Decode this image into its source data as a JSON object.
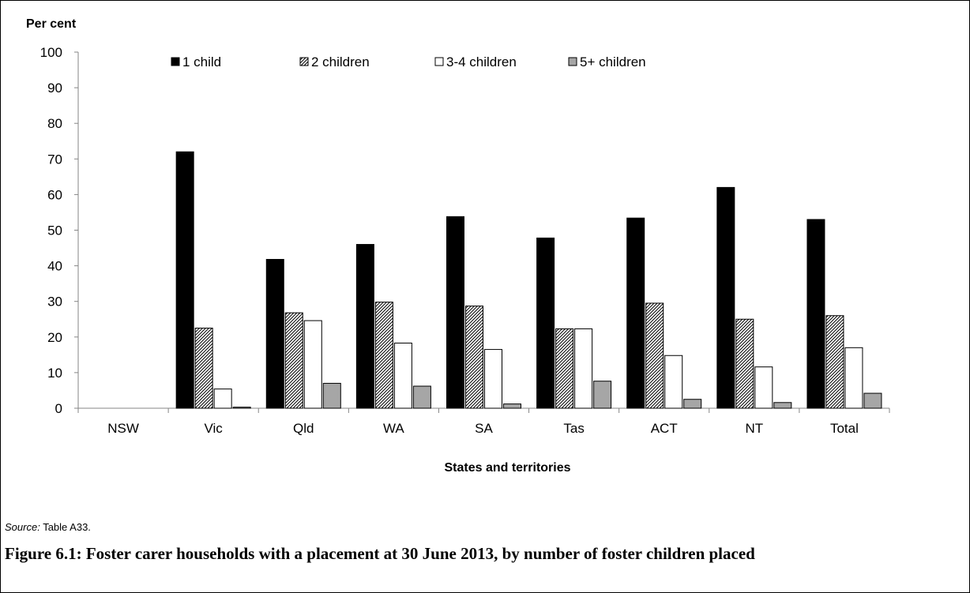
{
  "chart_data": {
    "type": "bar",
    "ylabel": "Per cent",
    "xlabel": "States and territories",
    "ylim": [
      0,
      100
    ],
    "yticks": [
      0,
      10,
      20,
      30,
      40,
      50,
      60,
      70,
      80,
      90,
      100
    ],
    "categories": [
      "NSW",
      "Vic",
      "Qld",
      "WA",
      "SA",
      "Tas",
      "ACT",
      "NT",
      "Total"
    ],
    "series": [
      {
        "name": "1 child",
        "fill": "solid-black",
        "values": [
          null,
          72.0,
          41.8,
          46.0,
          53.8,
          47.8,
          53.4,
          62.0,
          53.0
        ]
      },
      {
        "name": "2 children",
        "fill": "hatched",
        "values": [
          null,
          22.5,
          26.8,
          29.8,
          28.7,
          22.3,
          29.5,
          25.0,
          26.0
        ]
      },
      {
        "name": "3-4 children",
        "fill": "white",
        "values": [
          null,
          5.4,
          24.6,
          18.3,
          16.5,
          22.3,
          14.8,
          11.6,
          17.0
        ]
      },
      {
        "name": "5+ children",
        "fill": "grey",
        "values": [
          null,
          0.3,
          7.0,
          6.2,
          1.2,
          7.6,
          2.5,
          1.6,
          4.2
        ]
      }
    ],
    "legend_position": "top",
    "grid": false
  },
  "colors": {
    "series1": "#000000",
    "series2_hatch": "#000000",
    "series3": "#ffffff",
    "series4": "#a6a6a6",
    "axis": "#868686"
  },
  "source": {
    "label": "Source:",
    "text": " Table A33."
  },
  "caption": "Figure 6.1: Foster carer households with a placement at 30 June 2013, by number of foster children placed"
}
